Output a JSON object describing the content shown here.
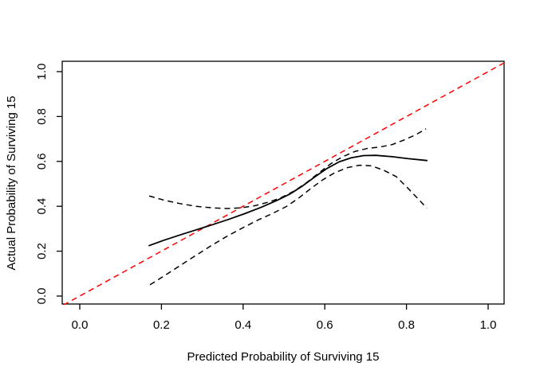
{
  "chart_data": {
    "type": "line",
    "title": "",
    "xlabel": "Predicted Probability of Surviving 15",
    "ylabel": "Actual Probability of Surviving 15",
    "xlim": [
      -0.04,
      1.04
    ],
    "ylim": [
      -0.04,
      1.04
    ],
    "xticks": [
      0.0,
      0.2,
      0.4,
      0.6,
      0.8,
      1.0
    ],
    "yticks": [
      0.0,
      0.2,
      0.4,
      0.6,
      0.8,
      1.0
    ],
    "xtick_labels": [
      "0.0",
      "0.2",
      "0.4",
      "0.6",
      "0.8",
      "1.0"
    ],
    "ytick_labels": [
      "0.0",
      "0.2",
      "0.4",
      "0.6",
      "0.8",
      "1.0"
    ],
    "grid": false,
    "legend": "none",
    "colors": {
      "ideal": "#FF0000",
      "curve": "#000000",
      "confidence": "#000000",
      "axis": "#000000"
    },
    "series": [
      {
        "name": "ideal-diagonal",
        "line_style": "dashed",
        "color": "#FF0000",
        "points": [
          [
            -0.04,
            -0.04
          ],
          [
            1.04,
            1.04
          ]
        ]
      },
      {
        "name": "calibration-curve",
        "line_style": "solid",
        "color": "#000000",
        "points": [
          [
            0.17,
            0.225
          ],
          [
            0.205,
            0.248
          ],
          [
            0.245,
            0.272
          ],
          [
            0.285,
            0.295
          ],
          [
            0.325,
            0.318
          ],
          [
            0.365,
            0.342
          ],
          [
            0.405,
            0.368
          ],
          [
            0.445,
            0.396
          ],
          [
            0.485,
            0.428
          ],
          [
            0.515,
            0.455
          ],
          [
            0.545,
            0.49
          ],
          [
            0.575,
            0.53
          ],
          [
            0.605,
            0.568
          ],
          [
            0.635,
            0.598
          ],
          [
            0.665,
            0.616
          ],
          [
            0.695,
            0.626
          ],
          [
            0.725,
            0.627
          ],
          [
            0.765,
            0.621
          ],
          [
            0.805,
            0.612
          ],
          [
            0.85,
            0.604
          ]
        ]
      },
      {
        "name": "upper-confidence-band",
        "line_style": "dashed",
        "color": "#000000",
        "points": [
          [
            0.17,
            0.446
          ],
          [
            0.205,
            0.428
          ],
          [
            0.245,
            0.412
          ],
          [
            0.285,
            0.4
          ],
          [
            0.325,
            0.393
          ],
          [
            0.36,
            0.39
          ],
          [
            0.395,
            0.393
          ],
          [
            0.43,
            0.403
          ],
          [
            0.465,
            0.42
          ],
          [
            0.495,
            0.44
          ],
          [
            0.525,
            0.468
          ],
          [
            0.555,
            0.505
          ],
          [
            0.585,
            0.548
          ],
          [
            0.615,
            0.59
          ],
          [
            0.645,
            0.622
          ],
          [
            0.675,
            0.645
          ],
          [
            0.705,
            0.658
          ],
          [
            0.735,
            0.664
          ],
          [
            0.765,
            0.675
          ],
          [
            0.795,
            0.696
          ],
          [
            0.822,
            0.718
          ],
          [
            0.848,
            0.745
          ]
        ]
      },
      {
        "name": "lower-confidence-band",
        "line_style": "dashed",
        "color": "#000000",
        "points": [
          [
            0.172,
            0.05
          ],
          [
            0.205,
            0.088
          ],
          [
            0.245,
            0.135
          ],
          [
            0.285,
            0.182
          ],
          [
            0.325,
            0.228
          ],
          [
            0.362,
            0.268
          ],
          [
            0.4,
            0.305
          ],
          [
            0.438,
            0.34
          ],
          [
            0.472,
            0.368
          ],
          [
            0.505,
            0.398
          ],
          [
            0.535,
            0.435
          ],
          [
            0.565,
            0.478
          ],
          [
            0.595,
            0.518
          ],
          [
            0.625,
            0.55
          ],
          [
            0.655,
            0.572
          ],
          [
            0.685,
            0.583
          ],
          [
            0.715,
            0.58
          ],
          [
            0.745,
            0.56
          ],
          [
            0.775,
            0.532
          ],
          [
            0.805,
            0.478
          ],
          [
            0.83,
            0.43
          ],
          [
            0.85,
            0.392
          ]
        ]
      }
    ]
  }
}
